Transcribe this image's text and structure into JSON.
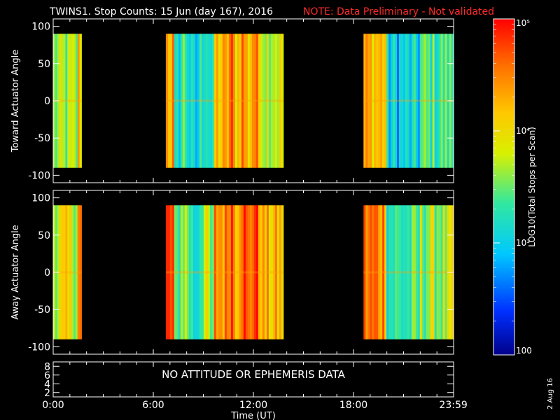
{
  "header": {
    "title": "TWINS1. Stop Counts: 15 Jun (day 167), 2016",
    "note": "NOTE: Data Preliminary - Not validated"
  },
  "footer": {
    "datestamp": "2 Aug 16"
  },
  "colors": {
    "background": "#000000",
    "axes": "#ffffff",
    "note": "#ff2a2a"
  },
  "chart_data": [
    {
      "type": "heatmap",
      "name": "toward",
      "ylabel": "Toward Actuator Angle",
      "ylim": [
        -110,
        110
      ],
      "yticks": [
        -100,
        -50,
        0,
        50,
        100
      ],
      "xlim": [
        0,
        24
      ],
      "data_yrange": [
        -90,
        90
      ],
      "segments": [
        {
          "start": 0.0,
          "end": 1.7
        },
        {
          "start": 6.75,
          "end": 13.8
        },
        {
          "start": 18.6,
          "end": 23.98
        }
      ]
    },
    {
      "type": "heatmap",
      "name": "away",
      "ylabel": "Away Actuator Angle",
      "ylim": [
        -110,
        110
      ],
      "yticks": [
        -100,
        -50,
        0,
        50,
        100
      ],
      "xlim": [
        0,
        24
      ],
      "data_yrange": [
        -90,
        90
      ],
      "segments": [
        {
          "start": 0.0,
          "end": 1.7
        },
        {
          "start": 6.75,
          "end": 13.8
        },
        {
          "start": 18.6,
          "end": 23.98
        }
      ]
    },
    {
      "type": "line",
      "name": "attitude",
      "yticks": [
        2,
        4,
        6,
        8
      ],
      "ylim": [
        1,
        9
      ],
      "xlim": [
        0,
        24
      ],
      "message": "NO ATTITUDE OR EPHEMERIS DATA",
      "xticks": [
        {
          "value": 0,
          "label": "0:00"
        },
        {
          "value": 6,
          "label": "6:00"
        },
        {
          "value": 12,
          "label": "12:00"
        },
        {
          "value": 18,
          "label": "18:00"
        },
        {
          "value": 23.983,
          "label": "23:59"
        }
      ],
      "xlabel": "Time (UT)"
    }
  ],
  "colorbar": {
    "label": "LOG10(Total Stops per Scan)",
    "scale": "log",
    "range": [
      100,
      100000
    ],
    "ticks": [
      {
        "value": 100,
        "label": "100"
      },
      {
        "value": 1000,
        "label": "10³"
      },
      {
        "value": 10000,
        "label": "10⁴"
      },
      {
        "value": 100000,
        "label": "10⁵"
      }
    ]
  }
}
